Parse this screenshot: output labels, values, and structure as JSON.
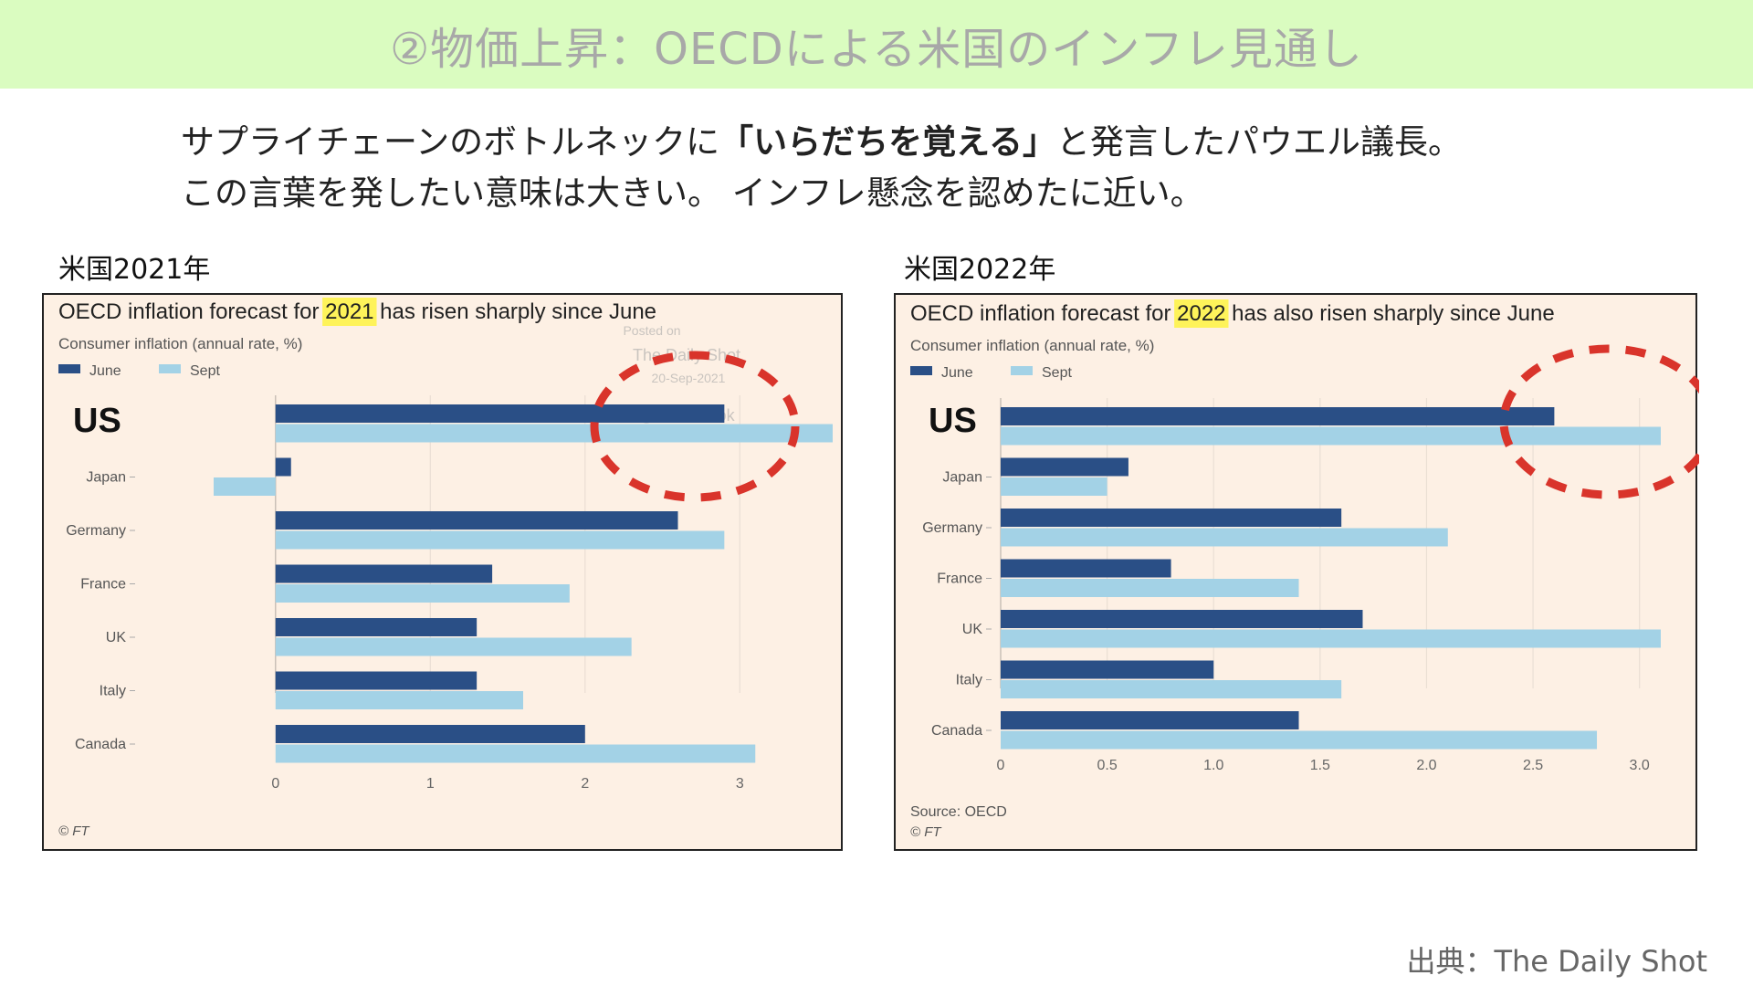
{
  "header": {
    "title": "②物価上昇：OECDによる米国のインフレ見通し"
  },
  "intro": {
    "line1_pre": "サプライチェーンのボトルネックに",
    "line1_bold": "「いらだちを覚える」",
    "line1_post": "と発言したパウエル議長。",
    "line2": "この言葉を発したい意味は大きい。 インフレ懸念を認めたに近い。"
  },
  "left_label": "米国2021年",
  "right_label": "米国2022年",
  "footer": {
    "source": "出典：The Daily Shot"
  },
  "colors": {
    "june": "#2a4f86",
    "sept": "#a3d2e6",
    "highlight": "#fef35a",
    "circle": "#d9342b",
    "panel_bg": "#fdf0e4"
  },
  "chart_data": [
    {
      "type": "bar",
      "title_pre": "OECD inflation forecast for ",
      "title_highlight": "2021",
      "title_post": " has risen sharply since June",
      "subtitle": "Consumer inflation (annual rate, %)",
      "legend": [
        "June",
        "Sept"
      ],
      "watermark": [
        "Posted on",
        "The Daily Shot",
        "20-Sep-2021",
        "@SoberLook"
      ],
      "callout_label": "US",
      "categories": [
        "US",
        "Japan",
        "Germany",
        "France",
        "UK",
        "Italy",
        "Canada"
      ],
      "series": [
        {
          "name": "June",
          "values": [
            2.9,
            0.1,
            2.6,
            1.4,
            1.3,
            1.3,
            2.0
          ]
        },
        {
          "name": "Sept",
          "values": [
            3.6,
            -0.4,
            2.9,
            1.9,
            2.3,
            1.6,
            3.1
          ]
        }
      ],
      "ticks": [
        0,
        1,
        2,
        3
      ],
      "tick_labels": [
        "0",
        "1",
        "2",
        "3"
      ],
      "xlim": [
        -0.4,
        3.6
      ],
      "source": "",
      "credit": "© FT"
    },
    {
      "type": "bar",
      "title_pre": "OECD inflation forecast for ",
      "title_highlight": "2022",
      "title_post": " has also risen sharply since June",
      "subtitle": "Consumer inflation (annual rate, %)",
      "legend": [
        "June",
        "Sept"
      ],
      "watermark": [],
      "callout_label": "US",
      "categories": [
        "US",
        "Japan",
        "Germany",
        "France",
        "UK",
        "Italy",
        "Canada"
      ],
      "series": [
        {
          "name": "June",
          "values": [
            2.6,
            0.6,
            1.6,
            0.8,
            1.7,
            1.0,
            1.4
          ]
        },
        {
          "name": "Sept",
          "values": [
            3.1,
            0.5,
            2.1,
            1.4,
            3.1,
            1.6,
            2.8
          ]
        }
      ],
      "ticks": [
        0,
        0.5,
        1.0,
        1.5,
        2.0,
        2.5,
        3.0
      ],
      "tick_labels": [
        "0",
        "0.5",
        "1.0",
        "1.5",
        "2.0",
        "2.5",
        "3.0"
      ],
      "xlim": [
        0,
        3.1
      ],
      "source": "Source: OECD",
      "credit": "© FT"
    }
  ]
}
